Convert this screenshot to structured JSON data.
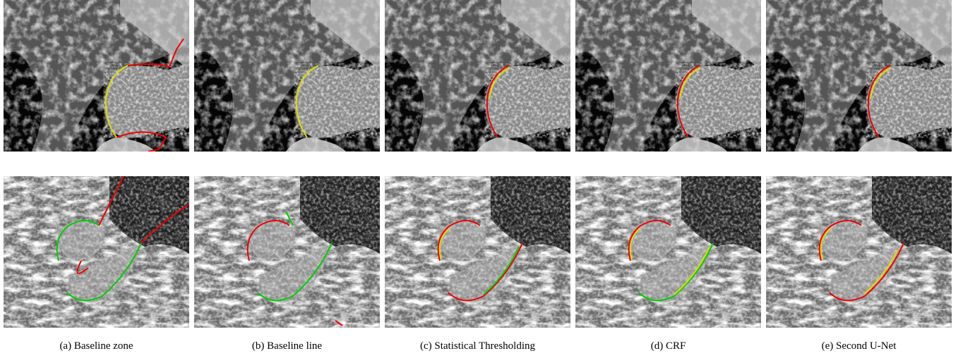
{
  "figure": {
    "subfigures": [
      {
        "caption": "(a) Baseline zone"
      },
      {
        "caption": "(b) Baseline line"
      },
      {
        "caption": "(c) Statistical Thresholding"
      },
      {
        "caption": "(d) CRF"
      },
      {
        "caption": "(e) Second U-Net"
      }
    ]
  }
}
